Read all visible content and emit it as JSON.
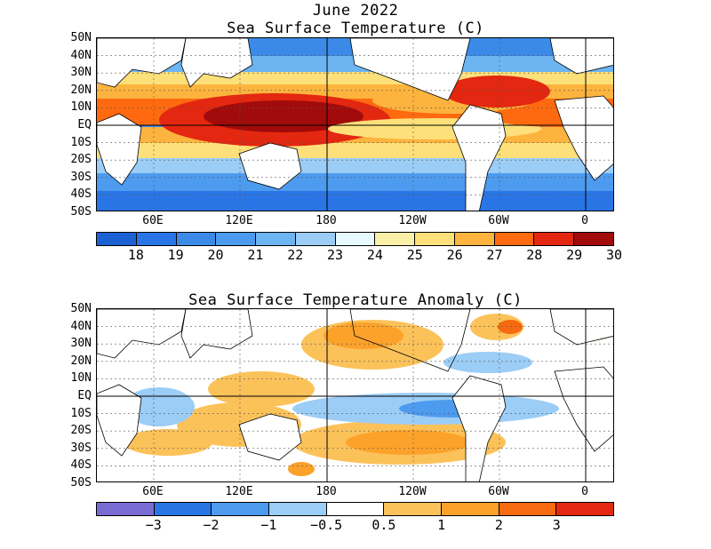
{
  "titles": {
    "main_line1": "June 2022",
    "main_line2": "Sea Surface Temperature (C)",
    "anomaly": "Sea Surface Temperature Anomaly (C)"
  },
  "lat_labels": [
    "50N",
    "40N",
    "30N",
    "20N",
    "10N",
    "EQ",
    "10S",
    "20S",
    "30S",
    "40S",
    "50S"
  ],
  "lon_labels": [
    "60E",
    "120E",
    "180",
    "120W",
    "60W",
    "0"
  ],
  "sst_colorbar": {
    "colors": [
      "#1a62d4",
      "#2a75e6",
      "#3b8ae8",
      "#4d9bef",
      "#6cb4f2",
      "#9ccdf6",
      "#e6faff",
      "#fbf0a8",
      "#fde07a",
      "#fcb43e",
      "#ff6a10",
      "#e32710",
      "#a10b0b"
    ],
    "ticks": [
      "18",
      "19",
      "20",
      "21",
      "22",
      "23",
      "24",
      "25",
      "26",
      "27",
      "28",
      "29",
      "30"
    ]
  },
  "anom_colorbar": {
    "colors": [
      "#7a6bd4",
      "#2a75e6",
      "#4d9bef",
      "#9ccdf6",
      "#ffffff",
      "#fcc25a",
      "#fca22a",
      "#f86a10",
      "#e32710"
    ],
    "ticks": [
      "−3",
      "−2",
      "−1",
      "−0.5",
      "0.5",
      "1",
      "2",
      "3"
    ]
  }
}
